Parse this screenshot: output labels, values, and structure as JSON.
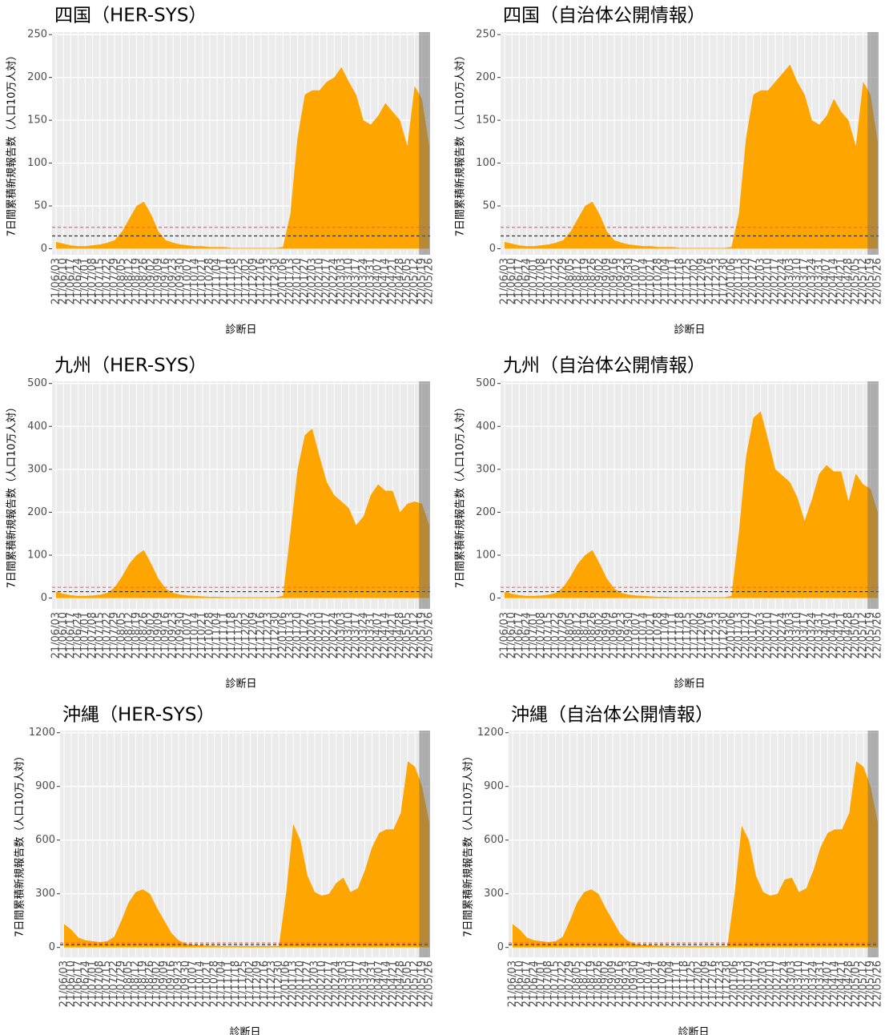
{
  "chart_data": [
    {
      "type": "area",
      "title": "四国（HER-SYS）",
      "x_label": "診断日",
      "y_label": "7日間累積新規報告数（人口10万人対）",
      "categories": [
        "21/06/03",
        "21/06/10",
        "21/06/17",
        "21/06/24",
        "21/07/01",
        "21/07/08",
        "21/07/15",
        "21/07/22",
        "21/07/29",
        "21/08/05",
        "21/08/12",
        "21/08/19",
        "21/08/26",
        "21/09/02",
        "21/09/09",
        "21/09/16",
        "21/09/23",
        "21/09/30",
        "21/10/07",
        "21/10/14",
        "21/10/21",
        "21/10/28",
        "21/11/04",
        "21/11/11",
        "21/11/18",
        "21/11/25",
        "21/12/02",
        "21/12/09",
        "21/12/16",
        "21/12/23",
        "21/12/30",
        "22/01/06",
        "22/01/13",
        "22/01/20",
        "22/01/27",
        "22/02/03",
        "22/02/10",
        "22/02/17",
        "22/02/24",
        "22/03/03",
        "22/03/10",
        "22/03/17",
        "22/03/24",
        "22/03/31",
        "22/04/07",
        "22/04/14",
        "22/04/21",
        "22/04/28",
        "22/05/05",
        "22/05/12",
        "22/05/19",
        "22/05/26"
      ],
      "values": [
        8,
        6,
        4,
        3,
        3,
        4,
        5,
        7,
        10,
        20,
        35,
        50,
        55,
        40,
        20,
        10,
        7,
        5,
        4,
        3,
        3,
        2,
        2,
        2,
        1,
        1,
        1,
        1,
        1,
        1,
        1,
        2,
        40,
        130,
        180,
        185,
        185,
        195,
        200,
        212,
        195,
        180,
        150,
        145,
        155,
        170,
        160,
        150,
        120,
        190,
        175,
        120
      ],
      "color": "#ffa500",
      "ylim": [
        -7,
        253
      ],
      "yticks": [
        0,
        50,
        100,
        150,
        200,
        250
      ],
      "grid": true,
      "hlines": [
        {
          "value": 25,
          "color": "#ff6060"
        },
        {
          "value": 15,
          "color": "#333333"
        }
      ]
    },
    {
      "type": "area",
      "title": "四国（自治体公開情報）",
      "x_label": "診断日",
      "y_label": "7日間累積新規報告数（人口10万人対）",
      "categories": [
        "21/06/03",
        "21/06/10",
        "21/06/17",
        "21/06/24",
        "21/07/01",
        "21/07/08",
        "21/07/15",
        "21/07/22",
        "21/07/29",
        "21/08/05",
        "21/08/12",
        "21/08/19",
        "21/08/26",
        "21/09/02",
        "21/09/09",
        "21/09/16",
        "21/09/23",
        "21/09/30",
        "21/10/07",
        "21/10/14",
        "21/10/21",
        "21/10/28",
        "21/11/04",
        "21/11/11",
        "21/11/18",
        "21/11/25",
        "21/12/02",
        "21/12/09",
        "21/12/16",
        "21/12/23",
        "21/12/30",
        "22/01/06",
        "22/01/13",
        "22/01/20",
        "22/01/27",
        "22/02/03",
        "22/02/10",
        "22/02/17",
        "22/02/24",
        "22/03/03",
        "22/03/10",
        "22/03/17",
        "22/03/24",
        "22/03/31",
        "22/04/07",
        "22/04/14",
        "22/04/21",
        "22/04/28",
        "22/05/05",
        "22/05/12",
        "22/05/19",
        "22/05/26"
      ],
      "values": [
        8,
        6,
        4,
        3,
        3,
        4,
        5,
        7,
        10,
        20,
        35,
        50,
        55,
        40,
        20,
        10,
        7,
        5,
        4,
        3,
        3,
        2,
        2,
        2,
        1,
        1,
        1,
        1,
        1,
        1,
        1,
        2,
        40,
        130,
        180,
        185,
        185,
        195,
        205,
        215,
        195,
        180,
        150,
        145,
        155,
        175,
        160,
        150,
        120,
        195,
        180,
        125
      ],
      "color": "#ffa500",
      "ylim": [
        -7,
        253
      ],
      "yticks": [
        0,
        50,
        100,
        150,
        200,
        250
      ],
      "grid": true,
      "hlines": [
        {
          "value": 25,
          "color": "#ff6060"
        },
        {
          "value": 15,
          "color": "#333333"
        }
      ]
    },
    {
      "type": "area",
      "title": "九州（HER-SYS）",
      "x_label": "診断日",
      "y_label": "7日間累積新規報告数（人口10万人対）",
      "categories": [
        "21/06/03",
        "21/06/10",
        "21/06/17",
        "21/06/24",
        "21/07/01",
        "21/07/08",
        "21/07/15",
        "21/07/22",
        "21/07/29",
        "21/08/05",
        "21/08/12",
        "21/08/19",
        "21/08/26",
        "21/09/02",
        "21/09/09",
        "21/09/16",
        "21/09/23",
        "21/09/30",
        "21/10/07",
        "21/10/14",
        "21/10/21",
        "21/10/28",
        "21/11/04",
        "21/11/11",
        "21/11/18",
        "21/11/25",
        "21/12/02",
        "21/12/09",
        "21/12/16",
        "21/12/23",
        "21/12/30",
        "22/01/06",
        "22/01/13",
        "22/01/20",
        "22/01/27",
        "22/02/03",
        "22/02/10",
        "22/02/17",
        "22/02/24",
        "22/03/03",
        "22/03/10",
        "22/03/17",
        "22/03/24",
        "22/03/31",
        "22/04/07",
        "22/04/14",
        "22/04/21",
        "22/04/28",
        "22/05/05",
        "22/05/12",
        "22/05/19",
        "22/05/26"
      ],
      "values": [
        15,
        10,
        7,
        5,
        5,
        6,
        8,
        12,
        25,
        50,
        80,
        100,
        112,
        80,
        45,
        22,
        12,
        8,
        6,
        5,
        4,
        3,
        3,
        2,
        2,
        2,
        2,
        2,
        2,
        2,
        2,
        5,
        150,
        300,
        380,
        395,
        330,
        270,
        240,
        225,
        210,
        170,
        190,
        240,
        265,
        250,
        250,
        200,
        220,
        225,
        220,
        170
      ],
      "color": "#ffa500",
      "ylim": [
        -25,
        505
      ],
      "yticks": [
        0,
        100,
        200,
        300,
        400,
        500
      ],
      "grid": true,
      "hlines": [
        {
          "value": 25,
          "color": "#ff6060"
        },
        {
          "value": 15,
          "color": "#333333"
        }
      ]
    },
    {
      "type": "area",
      "title": "九州（自治体公開情報）",
      "x_label": "診断日",
      "y_label": "7日間累積新規報告数（人口10万人対）",
      "categories": [
        "21/06/03",
        "21/06/10",
        "21/06/17",
        "21/06/24",
        "21/07/01",
        "21/07/08",
        "21/07/15",
        "21/07/22",
        "21/07/29",
        "21/08/05",
        "21/08/12",
        "21/08/19",
        "21/08/26",
        "21/09/02",
        "21/09/09",
        "21/09/16",
        "21/09/23",
        "21/09/30",
        "21/10/07",
        "21/10/14",
        "21/10/21",
        "21/10/28",
        "21/11/04",
        "21/11/11",
        "21/11/18",
        "21/11/25",
        "21/12/02",
        "21/12/09",
        "21/12/16",
        "21/12/23",
        "21/12/30",
        "22/01/06",
        "22/01/13",
        "22/01/20",
        "22/01/27",
        "22/02/03",
        "22/02/10",
        "22/02/17",
        "22/02/24",
        "22/03/03",
        "22/03/10",
        "22/03/17",
        "22/03/24",
        "22/03/31",
        "22/04/07",
        "22/04/14",
        "22/04/21",
        "22/04/28",
        "22/05/05",
        "22/05/12",
        "22/05/19",
        "22/05/26"
      ],
      "values": [
        15,
        10,
        7,
        5,
        5,
        6,
        8,
        12,
        25,
        50,
        80,
        100,
        112,
        80,
        45,
        22,
        12,
        8,
        6,
        5,
        4,
        3,
        3,
        2,
        2,
        2,
        2,
        2,
        2,
        2,
        2,
        5,
        150,
        330,
        420,
        435,
        370,
        300,
        285,
        270,
        235,
        180,
        230,
        290,
        310,
        295,
        295,
        225,
        290,
        265,
        255,
        200
      ],
      "color": "#ffa500",
      "ylim": [
        -25,
        505
      ],
      "yticks": [
        0,
        100,
        200,
        300,
        400,
        500
      ],
      "grid": true,
      "hlines": [
        {
          "value": 25,
          "color": "#ff6060"
        },
        {
          "value": 15,
          "color": "#333333"
        }
      ]
    },
    {
      "type": "area",
      "title": "沖縄（HER-SYS）",
      "x_label": "診断日",
      "y_label": "7日間累積新規報告数（人口10万人対）",
      "categories": [
        "21/06/03",
        "21/06/10",
        "21/06/17",
        "21/06/24",
        "21/07/01",
        "21/07/08",
        "21/07/15",
        "21/07/22",
        "21/07/29",
        "21/08/05",
        "21/08/12",
        "21/08/19",
        "21/08/26",
        "21/09/02",
        "21/09/09",
        "21/09/16",
        "21/09/23",
        "21/09/30",
        "21/10/07",
        "21/10/14",
        "21/10/21",
        "21/10/28",
        "21/11/04",
        "21/11/11",
        "21/11/18",
        "21/11/25",
        "21/12/02",
        "21/12/09",
        "21/12/16",
        "21/12/23",
        "21/12/30",
        "22/01/06",
        "22/01/13",
        "22/01/20",
        "22/01/27",
        "22/02/03",
        "22/02/10",
        "22/02/17",
        "22/02/24",
        "22/03/03",
        "22/03/10",
        "22/03/17",
        "22/03/24",
        "22/03/31",
        "22/04/07",
        "22/04/14",
        "22/04/21",
        "22/04/28",
        "22/05/05",
        "22/05/12",
        "22/05/19",
        "22/05/26"
      ],
      "values": [
        130,
        100,
        55,
        40,
        35,
        30,
        35,
        60,
        150,
        250,
        310,
        325,
        300,
        220,
        150,
        80,
        40,
        20,
        15,
        12,
        10,
        10,
        9,
        8,
        8,
        8,
        8,
        8,
        8,
        8,
        8,
        300,
        690,
        600,
        400,
        310,
        290,
        300,
        360,
        390,
        310,
        330,
        430,
        560,
        640,
        660,
        660,
        750,
        1040,
        1010,
        900,
        700
      ],
      "color": "#ffa500",
      "ylim": [
        -55,
        1212
      ],
      "yticks": [
        0,
        300,
        600,
        900,
        1200
      ],
      "grid": true,
      "hlines": [
        {
          "value": 25,
          "color": "#ff6060"
        },
        {
          "value": 15,
          "color": "#333333"
        }
      ]
    },
    {
      "type": "area",
      "title": "沖縄（自治体公開情報）",
      "x_label": "診断日",
      "y_label": "7日間累積新規報告数（人口10万人対）",
      "categories": [
        "21/06/03",
        "21/06/10",
        "21/06/17",
        "21/06/24",
        "21/07/01",
        "21/07/08",
        "21/07/15",
        "21/07/22",
        "21/07/29",
        "21/08/05",
        "21/08/12",
        "21/08/19",
        "21/08/26",
        "21/09/02",
        "21/09/09",
        "21/09/16",
        "21/09/23",
        "21/09/30",
        "21/10/07",
        "21/10/14",
        "21/10/21",
        "21/10/28",
        "21/11/04",
        "21/11/11",
        "21/11/18",
        "21/11/25",
        "21/12/02",
        "21/12/09",
        "21/12/16",
        "21/12/23",
        "21/12/30",
        "22/01/06",
        "22/01/13",
        "22/01/20",
        "22/01/27",
        "22/02/03",
        "22/02/10",
        "22/02/17",
        "22/02/24",
        "22/03/03",
        "22/03/10",
        "22/03/17",
        "22/03/24",
        "22/03/31",
        "22/04/07",
        "22/04/14",
        "22/04/21",
        "22/04/28",
        "22/05/05",
        "22/05/12",
        "22/05/19",
        "22/05/26"
      ],
      "values": [
        130,
        100,
        55,
        40,
        35,
        30,
        35,
        60,
        150,
        250,
        310,
        325,
        300,
        220,
        150,
        80,
        40,
        20,
        15,
        12,
        10,
        10,
        9,
        8,
        8,
        8,
        8,
        8,
        8,
        8,
        8,
        300,
        680,
        600,
        400,
        310,
        290,
        300,
        380,
        390,
        310,
        330,
        430,
        560,
        640,
        660,
        660,
        750,
        1040,
        1010,
        900,
        700
      ],
      "color": "#ffa500",
      "ylim": [
        -55,
        1212
      ],
      "yticks": [
        0,
        300,
        600,
        900,
        1200
      ],
      "grid": true,
      "hlines": [
        {
          "value": 25,
          "color": "#ff6060"
        },
        {
          "value": 15,
          "color": "#333333"
        }
      ]
    }
  ]
}
